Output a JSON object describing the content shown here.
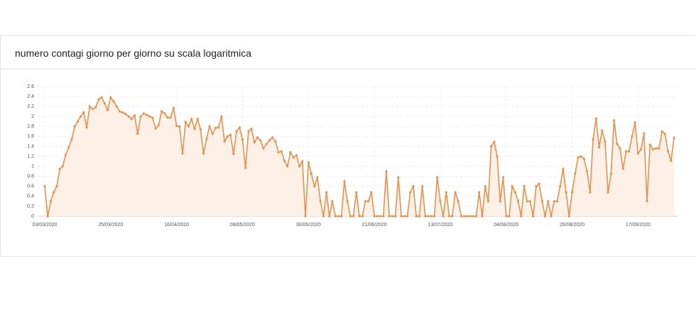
{
  "title": "numero contagi giorno per giorno su scala logaritmica",
  "chart_data": {
    "type": "line",
    "color": "#e8914a",
    "fill": "#fdf1e7",
    "grid": true,
    "ylim": [
      0,
      2.6
    ],
    "yticks": [
      0,
      0.2,
      0.4,
      0.6,
      0.8,
      1,
      1.2,
      1.4,
      1.6,
      1.8,
      2,
      2.2,
      2.4,
      2.6
    ],
    "categories": [
      "03/03/2020",
      null,
      null,
      null,
      null,
      null,
      null,
      null,
      null,
      null,
      null,
      null,
      null,
      null,
      null,
      null,
      null,
      null,
      null,
      null,
      null,
      null,
      "25/03/2020",
      null,
      null,
      null,
      null,
      null,
      null,
      null,
      null,
      null,
      null,
      null,
      null,
      null,
      null,
      null,
      null,
      null,
      null,
      null,
      null,
      null,
      "16/04/2020",
      null,
      null,
      null,
      null,
      null,
      null,
      null,
      null,
      null,
      null,
      null,
      null,
      null,
      null,
      null,
      null,
      null,
      null,
      null,
      null,
      null,
      "08/05/2020",
      null,
      null,
      null,
      null,
      null,
      null,
      null,
      null,
      null,
      null,
      null,
      null,
      null,
      null,
      null,
      null,
      null,
      null,
      null,
      null,
      null,
      "30/05/2020",
      null,
      null,
      null,
      null,
      null,
      null,
      null,
      null,
      null,
      null,
      null,
      null,
      null,
      null,
      null,
      null,
      null,
      null,
      null,
      null,
      null,
      "21/06/2020",
      null,
      null,
      null,
      null,
      null,
      null,
      null,
      null,
      null,
      null,
      null,
      null,
      null,
      null,
      null,
      null,
      null,
      null,
      null,
      null,
      null,
      "13/07/2020",
      null,
      null,
      null,
      null,
      null,
      null,
      null,
      null,
      null,
      null,
      null,
      null,
      null,
      null,
      null,
      null,
      null,
      null,
      null,
      null,
      null,
      "04/08/2020",
      null,
      null,
      null,
      null,
      null,
      null,
      null,
      null,
      null,
      null,
      null,
      null,
      null,
      null,
      null,
      null,
      null,
      null,
      null,
      null,
      null,
      "26/08/2020",
      null,
      null,
      null,
      null,
      null,
      null,
      null,
      null,
      null,
      null,
      null,
      null,
      null,
      null,
      null,
      null,
      null,
      null,
      null,
      null,
      null,
      "17/09/2020",
      null,
      null,
      null,
      null,
      null,
      null,
      null,
      null,
      null,
      null,
      null,
      null
    ],
    "values": [
      0.6,
      0,
      0.3,
      0.48,
      0.6,
      0.95,
      1.0,
      1.23,
      1.38,
      1.54,
      1.8,
      1.9,
      2.0,
      2.08,
      1.78,
      2.2,
      2.15,
      2.18,
      2.34,
      2.38,
      2.26,
      2.13,
      2.38,
      2.3,
      2.2,
      2.1,
      2.08,
      2.05,
      2.0,
      1.95,
      2.02,
      1.65,
      2.0,
      2.06,
      2.03,
      2.0,
      1.97,
      1.76,
      1.83,
      2.1,
      2.06,
      1.98,
      1.98,
      2.17,
      1.81,
      1.8,
      1.26,
      1.89,
      1.8,
      1.95,
      1.75,
      1.95,
      1.74,
      1.26,
      1.55,
      1.8,
      1.65,
      1.77,
      1.78,
      2.0,
      1.5,
      1.6,
      1.63,
      1.25,
      1.7,
      1.78,
      1.54,
      0.97,
      1.7,
      1.75,
      1.48,
      1.58,
      1.52,
      1.36,
      1.45,
      1.52,
      1.58,
      1.5,
      1.28,
      1.3,
      1.11,
      1.0,
      1.28,
      1.18,
      1.22,
      1.0,
      1.1,
      0,
      1.08,
      0.85,
      0.6,
      0.78,
      0.3,
      0,
      0.48,
      0,
      0.3,
      0,
      0,
      0,
      0.7,
      0.3,
      0,
      0,
      0.48,
      0,
      0,
      0.3,
      0.3,
      0.48,
      0,
      0,
      0,
      0,
      0.9,
      0,
      0,
      0,
      0.78,
      0,
      0,
      0,
      0.48,
      0.6,
      0,
      0,
      0.6,
      0,
      0,
      0,
      0,
      0.78,
      0.3,
      0,
      0.48,
      0,
      0,
      0.48,
      0.3,
      0,
      0,
      0,
      0,
      0,
      0,
      0.48,
      0,
      0.6,
      0.3,
      1.4,
      1.49,
      1.2,
      0.3,
      0.78,
      0,
      0,
      0.6,
      0.48,
      0.3,
      0,
      0.6,
      0.3,
      0.3,
      0,
      0.6,
      0.65,
      0.3,
      0,
      0.3,
      0,
      0.3,
      0.3,
      0.6,
      0.95,
      0.48,
      0,
      0.48,
      0.85,
      1.18,
      1.2,
      1.15,
      0.9,
      0.48,
      1.54,
      1.96,
      1.38,
      1.72,
      1.5,
      0.48,
      0.85,
      1.92,
      1.45,
      1.36,
      0.95,
      1.3,
      1.3,
      1.6,
      1.88,
      1.26,
      1.34,
      1.66,
      0.3,
      1.43,
      1.34,
      1.36,
      1.36,
      1.7,
      1.65,
      1.3,
      1.11,
      1.57
    ]
  }
}
